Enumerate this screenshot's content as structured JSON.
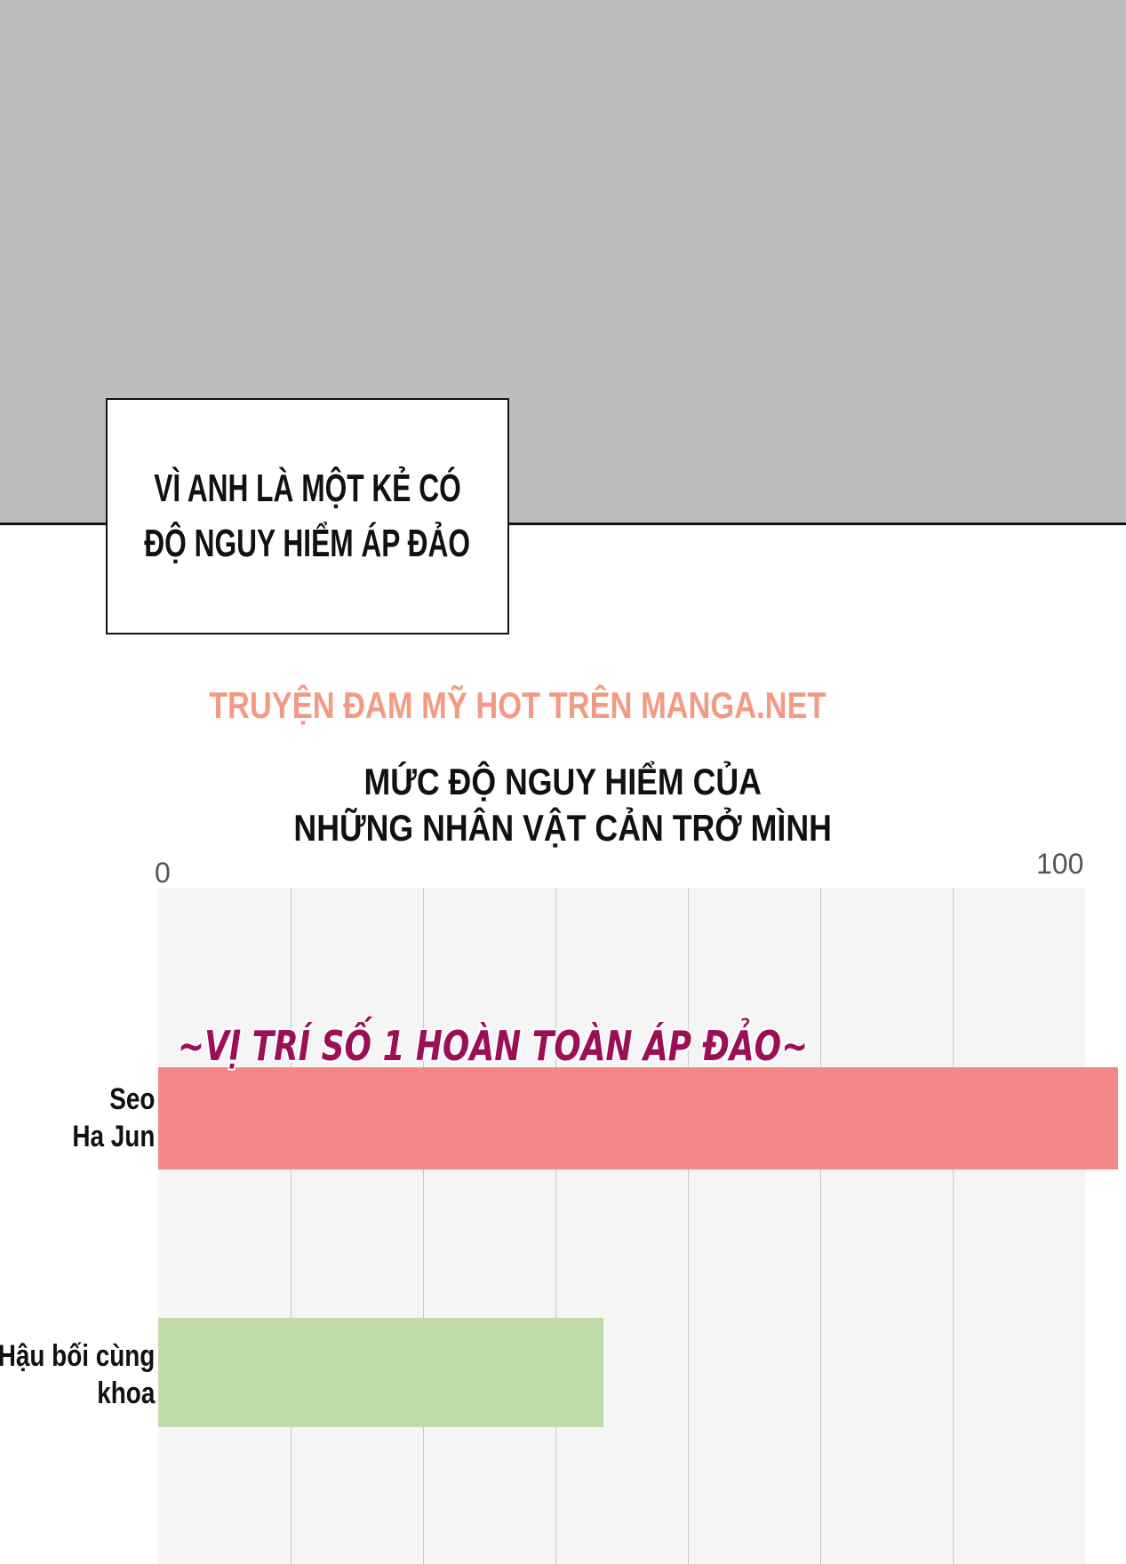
{
  "caption": {
    "line1": "VÌ ANH LÀ MỘT KẺ CÓ",
    "line2": "ĐỘ NGUY HIỂM ÁP ĐẢO"
  },
  "watermark": "TRUYỆN ĐAM MỸ HOT TRÊN MANGA.NET",
  "chart_data": {
    "type": "bar",
    "orientation": "horizontal",
    "title_line1": "MỨC ĐỘ NGUY HIỂM CỦA",
    "title_line2": "NHỮNG NHÂN VẬT CẢN TRỞ MÌNH",
    "xlim": [
      0,
      100
    ],
    "tick_labels": [
      "0",
      "100"
    ],
    "grid": true,
    "categories": [
      "Seo\nHa Jun",
      "Hậu bối cùng\nkhoa"
    ],
    "category_lines": [
      [
        "Seo",
        "Ha Jun"
      ],
      [
        "Hậu bối cùng",
        "khoa"
      ]
    ],
    "values": [
      103.5,
      48
    ],
    "colors": [
      "#f68787",
      "#c0dca9"
    ],
    "annotation": "~VỊ TRÍ SỐ 1 HOÀN TOÀN ÁP ĐẢO~",
    "annotation_color": "#9b0f55"
  }
}
